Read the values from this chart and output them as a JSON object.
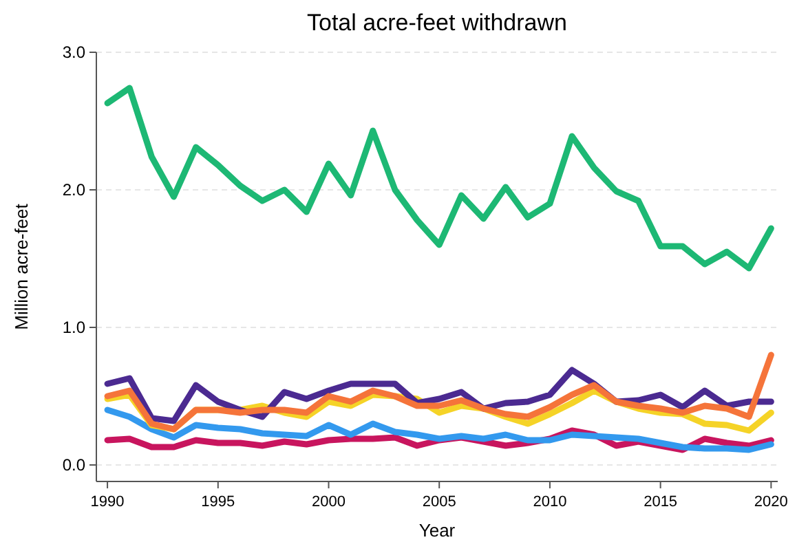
{
  "chart_data": {
    "type": "line",
    "title": "Total acre-feet withdrawn",
    "xlabel": "Year",
    "ylabel": "Million acre-feet",
    "x": [
      1990,
      1991,
      1992,
      1993,
      1994,
      1995,
      1996,
      1997,
      1998,
      1999,
      2000,
      2001,
      2002,
      2003,
      2004,
      2005,
      2006,
      2007,
      2008,
      2009,
      2010,
      2011,
      2012,
      2013,
      2014,
      2015,
      2016,
      2017,
      2018,
      2019,
      2020
    ],
    "xlim": [
      1989.5,
      2020.3
    ],
    "xticks": [
      1990,
      1995,
      2000,
      2005,
      2010,
      2015,
      2020
    ],
    "ylim": [
      -0.12,
      3.0
    ],
    "yticks": [
      {
        "value": 0,
        "label": "0.0"
      },
      {
        "value": 1,
        "label": "1.0"
      },
      {
        "value": 2,
        "label": "2.0"
      },
      {
        "value": 3,
        "label": "3.0"
      }
    ],
    "grid": "y",
    "line_style": "solid",
    "series": [
      {
        "color": "#1db874",
        "values": [
          2.63,
          2.74,
          2.24,
          1.95,
          2.31,
          2.18,
          2.03,
          1.92,
          2.0,
          1.84,
          2.19,
          1.96,
          2.43,
          2.0,
          1.78,
          1.6,
          1.96,
          1.79,
          2.02,
          1.8,
          1.9,
          2.39,
          2.16,
          1.99,
          1.92,
          1.59,
          1.59,
          1.46,
          1.55,
          1.43,
          1.72
        ]
      },
      {
        "color": "#c8155e",
        "values": [
          0.18,
          0.19,
          0.13,
          0.13,
          0.18,
          0.16,
          0.16,
          0.14,
          0.17,
          0.15,
          0.18,
          0.19,
          0.19,
          0.2,
          0.14,
          0.18,
          0.2,
          0.17,
          0.14,
          0.16,
          0.19,
          0.25,
          0.22,
          0.14,
          0.17,
          0.14,
          0.11,
          0.19,
          0.16,
          0.14,
          0.18
        ]
      },
      {
        "color": "#3399ee",
        "values": [
          0.4,
          0.35,
          0.26,
          0.2,
          0.29,
          0.27,
          0.26,
          0.23,
          0.22,
          0.21,
          0.29,
          0.22,
          0.3,
          0.24,
          0.22,
          0.19,
          0.21,
          0.19,
          0.22,
          0.18,
          0.18,
          0.22,
          0.21,
          0.2,
          0.19,
          0.16,
          0.13,
          0.12,
          0.12,
          0.11,
          0.15
        ]
      },
      {
        "color": "#f5d327",
        "values": [
          0.48,
          0.51,
          0.29,
          0.26,
          0.4,
          0.4,
          0.4,
          0.43,
          0.38,
          0.35,
          0.46,
          0.43,
          0.51,
          0.5,
          0.48,
          0.38,
          0.43,
          0.41,
          0.35,
          0.3,
          0.37,
          0.45,
          0.54,
          0.46,
          0.41,
          0.38,
          0.37,
          0.3,
          0.29,
          0.25,
          0.38
        ]
      },
      {
        "color": "#4b2a91",
        "values": [
          0.59,
          0.63,
          0.34,
          0.32,
          0.58,
          0.46,
          0.4,
          0.35,
          0.53,
          0.48,
          0.54,
          0.59,
          0.59,
          0.59,
          0.45,
          0.48,
          0.53,
          0.41,
          0.45,
          0.46,
          0.51,
          0.69,
          0.59,
          0.46,
          0.47,
          0.51,
          0.42,
          0.54,
          0.43,
          0.46,
          0.46
        ]
      },
      {
        "color": "#f5743a",
        "values": [
          0.5,
          0.54,
          0.3,
          0.26,
          0.4,
          0.4,
          0.38,
          0.4,
          0.4,
          0.38,
          0.5,
          0.46,
          0.54,
          0.5,
          0.43,
          0.43,
          0.47,
          0.41,
          0.37,
          0.35,
          0.42,
          0.51,
          0.58,
          0.46,
          0.43,
          0.41,
          0.38,
          0.43,
          0.41,
          0.35,
          0.8
        ]
      }
    ]
  }
}
